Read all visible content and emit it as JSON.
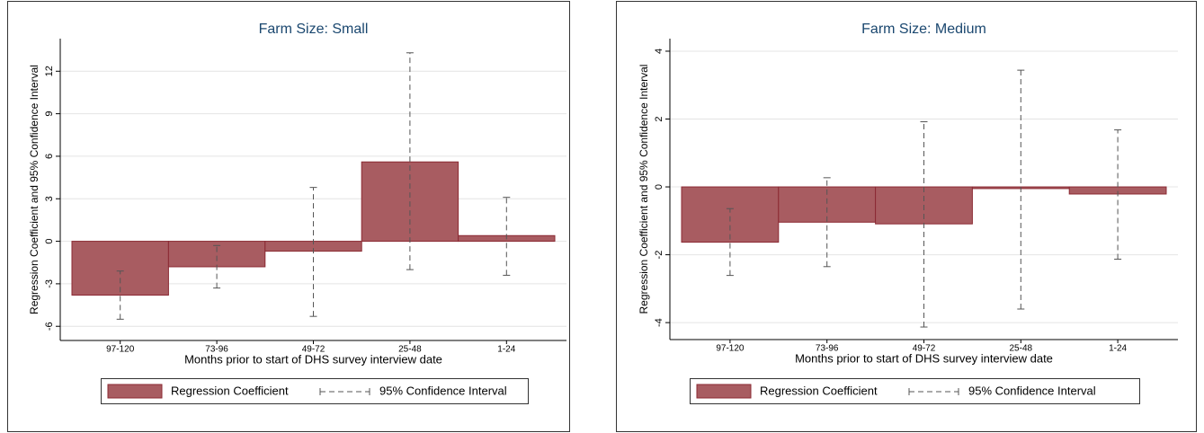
{
  "chart_data": [
    {
      "type": "bar",
      "title": "Farm Size: Small",
      "xlabel": "Months prior to start of DHS survey interview date",
      "ylabel": "Regression Coefficient and 95% Confidence Interval",
      "categories": [
        "97-120",
        "73-96",
        "49-72",
        "25-48",
        "1-24"
      ],
      "series": [
        {
          "name": "Regression Coefficient",
          "color": "#a85c61",
          "values": [
            -3.8,
            -1.8,
            -0.7,
            5.6,
            0.4
          ]
        },
        {
          "name": "95% Confidence Interval",
          "color": "#555555",
          "lower": [
            -5.5,
            -3.3,
            -5.3,
            -2.0,
            -2.4
          ],
          "upper": [
            -2.1,
            -0.3,
            3.8,
            13.3,
            3.1
          ]
        }
      ],
      "ylim": [
        -7,
        14.3
      ],
      "yticks": [
        -6,
        -3,
        0,
        3,
        6,
        9,
        12
      ],
      "grid": true,
      "legend": "bottom"
    },
    {
      "type": "bar",
      "title": "Farm Size: Medium",
      "xlabel": "Months prior to start of DHS survey interview date",
      "ylabel": "Regression Coefficient and 95% Confidence Interval",
      "categories": [
        "97-120",
        "73-96",
        "49-72",
        "25-48",
        "1-24"
      ],
      "series": [
        {
          "name": "Regression Coefficient",
          "color": "#a85c61",
          "values": [
            -1.63,
            -1.04,
            -1.09,
            -0.05,
            -0.21
          ]
        },
        {
          "name": "95% Confidence Interval",
          "color": "#555555",
          "lower": [
            -2.61,
            -2.35,
            -4.13,
            -3.6,
            -2.13
          ],
          "upper": [
            -0.64,
            0.27,
            1.92,
            3.44,
            1.68
          ]
        }
      ],
      "ylim": [
        -4.5,
        4.37
      ],
      "yticks": [
        -4,
        -2,
        0,
        2,
        4
      ],
      "grid": true,
      "legend": "bottom"
    }
  ]
}
